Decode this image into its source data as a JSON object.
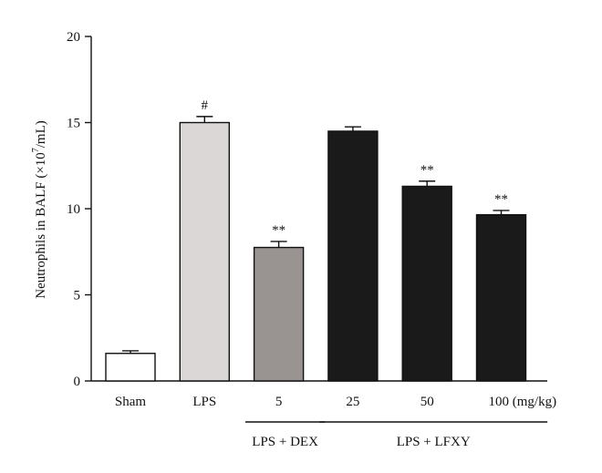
{
  "chart_data": {
    "type": "bar",
    "categories": [
      "Sham",
      "LPS",
      "5",
      "25",
      "50",
      "100 (mg/kg)"
    ],
    "values": [
      1.6,
      15.0,
      7.75,
      14.5,
      11.3,
      9.65
    ],
    "errors": [
      0.15,
      0.35,
      0.35,
      0.25,
      0.3,
      0.25
    ],
    "bar_colors": [
      "#ffffff",
      "#dcd7d7",
      "#999391",
      "#1a1a1a",
      "#1a1a1a",
      "#1a1a1a"
    ],
    "significance": [
      "",
      "#",
      "**",
      "",
      "**",
      "**"
    ],
    "ylabel_main": "Neutrophils in BALF (×10",
    "ylabel_sup": "7",
    "ylabel_tail": "/mL)",
    "ylim": [
      0,
      20
    ],
    "yticks": [
      "0",
      "5",
      "10",
      "15",
      "20"
    ],
    "groups": [
      {
        "label": "LPS + DEX",
        "from": 2,
        "to": 2
      },
      {
        "label": "LPS + LFXY",
        "from": 3,
        "to": 5
      }
    ]
  }
}
